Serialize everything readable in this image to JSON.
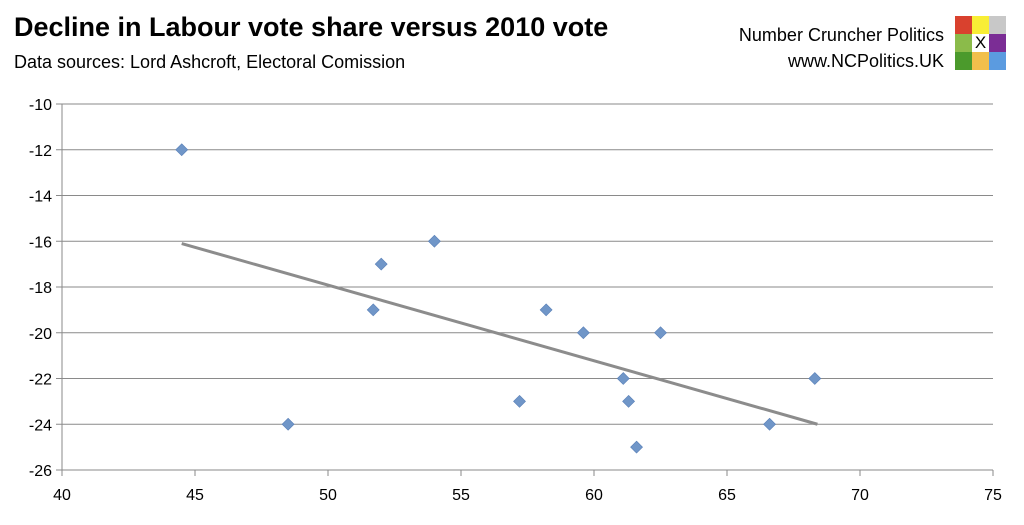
{
  "header": {
    "title": "Decline in Labour vote share versus 2010 vote",
    "subtitle": "Data sources: Lord Ashcroft, Electoral Comission",
    "brand_name": "Number Cruncher Politics",
    "brand_url": "www.NCPolitics.UK",
    "logo_mark": "X",
    "logo_colors": [
      "#d9412e",
      "#f8ee35",
      "#c8c8c8",
      "#8bbb4a",
      "#ffffff",
      "#7b2d95",
      "#4b9a2c",
      "#f2bf4c",
      "#5b9be0"
    ]
  },
  "chart_data": {
    "type": "scatter",
    "title": "Decline in Labour vote share versus 2010 vote",
    "xlabel": "",
    "ylabel": "",
    "xlim": [
      40,
      75
    ],
    "ylim": [
      -26,
      -10
    ],
    "xticks": [
      40,
      45,
      50,
      55,
      60,
      65,
      70,
      75
    ],
    "yticks": [
      -10,
      -12,
      -14,
      -16,
      -18,
      -20,
      -22,
      -24,
      -26
    ],
    "grid": "horizontal",
    "marker_color": "#7096c8",
    "trendline_color": "#8c8c8c",
    "points": [
      {
        "x": 44.5,
        "y": -12
      },
      {
        "x": 48.5,
        "y": -24
      },
      {
        "x": 51.7,
        "y": -19
      },
      {
        "x": 52.0,
        "y": -17
      },
      {
        "x": 54.0,
        "y": -16
      },
      {
        "x": 57.2,
        "y": -23
      },
      {
        "x": 58.2,
        "y": -19
      },
      {
        "x": 59.6,
        "y": -20
      },
      {
        "x": 61.1,
        "y": -22
      },
      {
        "x": 61.3,
        "y": -23
      },
      {
        "x": 61.6,
        "y": -25
      },
      {
        "x": 62.5,
        "y": -20
      },
      {
        "x": 66.6,
        "y": -24
      },
      {
        "x": 68.3,
        "y": -22
      }
    ],
    "trendline": [
      {
        "x": 44.5,
        "y": -16.1
      },
      {
        "x": 68.4,
        "y": -24.0
      }
    ]
  }
}
